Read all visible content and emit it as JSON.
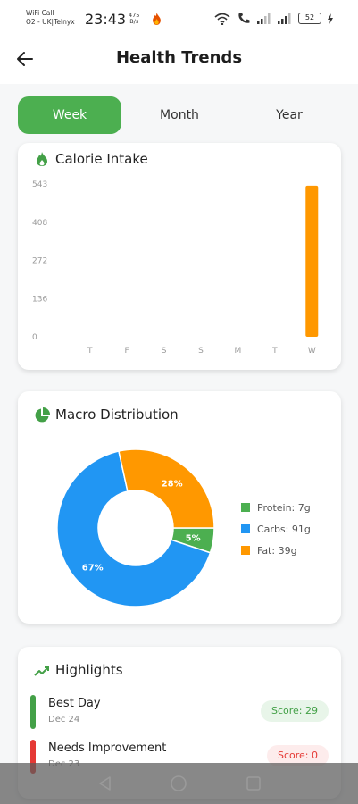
{
  "status": {
    "carrier_line1": "WiFi Call",
    "carrier_line2": "O2 - UK|Telnyx",
    "time": "23:43",
    "net_speed_value": "475",
    "net_speed_unit": "B/s",
    "battery": "52"
  },
  "appbar": {
    "title": "Health Trends"
  },
  "tabs": [
    {
      "label": "Week",
      "active": true
    },
    {
      "label": "Month",
      "active": false
    },
    {
      "label": "Year",
      "active": false
    }
  ],
  "calorie_card": {
    "title": "Calorie Intake"
  },
  "macro_card": {
    "title": "Macro Distribution",
    "legend": [
      "Protein: 7g",
      "Carbs: 91g",
      "Fat: 39g"
    ]
  },
  "highlights_card": {
    "title": "Highlights",
    "items": [
      {
        "name": "Best Day",
        "date": "Dec 24",
        "score": "Score: 29",
        "color": "#43a047",
        "badge_bg": "#e8f5e9",
        "badge_fg": "#43a047"
      },
      {
        "name": "Needs Improvement",
        "date": "Dec 23",
        "score": "Score: 0",
        "color": "#e53935",
        "badge_bg": "#fdecec",
        "badge_fg": "#e53935"
      }
    ]
  },
  "colors": {
    "accent": "#4caf50",
    "orange": "#ff9800",
    "blue": "#2196f3",
    "green": "#4caf50"
  },
  "chart_data": [
    {
      "type": "bar",
      "categories": [
        "T",
        "F",
        "S",
        "S",
        "M",
        "T",
        "W"
      ],
      "values": [
        0,
        0,
        0,
        0,
        0,
        0,
        537
      ],
      "y_ticks": [
        "0",
        "136",
        "272",
        "408",
        "543"
      ],
      "ylim": [
        0,
        543
      ],
      "title": "Calorie Intake",
      "xlabel": "",
      "ylabel": "",
      "grid": false,
      "color": "#ff9800"
    },
    {
      "type": "pie",
      "donut": true,
      "title": "Macro Distribution",
      "labels": [
        "Protein",
        "Carbs",
        "Fat"
      ],
      "values": [
        7,
        91,
        39
      ],
      "percent_labels": [
        "5%",
        "67%",
        "28%"
      ],
      "colors": [
        "#4caf50",
        "#2196f3",
        "#ff9800"
      ],
      "legend_position": "right"
    }
  ]
}
